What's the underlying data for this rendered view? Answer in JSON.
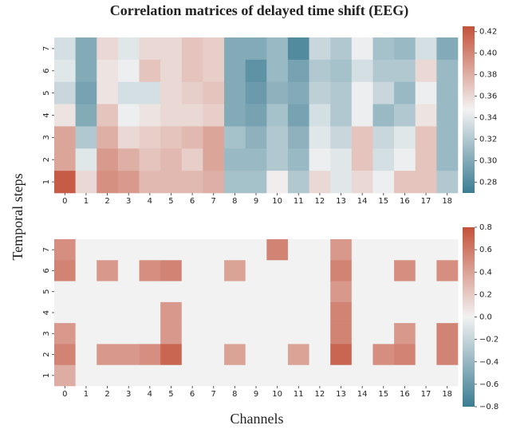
{
  "title": "Correlation matrices of delayed time shift (EEG)",
  "xlabel": "Channels",
  "ylabel": "Temporal steps",
  "chart_data": [
    {
      "type": "heatmap",
      "x": [
        0,
        1,
        2,
        3,
        4,
        5,
        6,
        7,
        8,
        9,
        10,
        11,
        12,
        13,
        14,
        15,
        16,
        17,
        18
      ],
      "y": [
        7,
        6,
        5,
        4,
        3,
        2,
        1
      ],
      "values": [
        [
          0.335,
          0.3,
          0.36,
          0.34,
          0.36,
          0.36,
          0.37,
          0.365,
          0.3,
          0.3,
          0.31,
          0.28,
          0.33,
          0.32,
          0.345,
          0.315,
          0.31,
          0.335,
          0.3
        ],
        [
          0.34,
          0.3,
          0.355,
          0.345,
          0.37,
          0.36,
          0.37,
          0.365,
          0.3,
          0.285,
          0.31,
          0.295,
          0.32,
          0.315,
          0.335,
          0.32,
          0.32,
          0.36,
          0.31
        ],
        [
          0.33,
          0.295,
          0.355,
          0.335,
          0.335,
          0.36,
          0.365,
          0.37,
          0.3,
          0.29,
          0.305,
          0.3,
          0.325,
          0.32,
          0.345,
          0.33,
          0.31,
          0.345,
          0.31
        ],
        [
          0.355,
          0.3,
          0.37,
          0.345,
          0.355,
          0.36,
          0.36,
          0.365,
          0.3,
          0.295,
          0.315,
          0.295,
          0.335,
          0.32,
          0.345,
          0.31,
          0.32,
          0.355,
          0.31
        ],
        [
          0.385,
          0.32,
          0.38,
          0.36,
          0.365,
          0.37,
          0.375,
          0.385,
          0.315,
          0.305,
          0.32,
          0.305,
          0.34,
          0.33,
          0.37,
          0.33,
          0.34,
          0.37,
          0.31
        ],
        [
          0.385,
          0.34,
          0.39,
          0.38,
          0.37,
          0.375,
          0.365,
          0.385,
          0.31,
          0.31,
          0.32,
          0.31,
          0.345,
          0.34,
          0.37,
          0.335,
          0.345,
          0.37,
          0.31
        ],
        [
          0.42,
          0.36,
          0.395,
          0.39,
          0.375,
          0.375,
          0.375,
          0.38,
          0.315,
          0.315,
          0.35,
          0.32,
          0.36,
          0.34,
          0.36,
          0.345,
          0.37,
          0.37,
          0.32
        ]
      ],
      "cmap": [
        "#3b7c92",
        "#f2f2f2",
        "#c3523a"
      ],
      "clim": [
        0.27,
        0.425
      ],
      "cticks": [
        0.28,
        {
          "value": 0.3,
          "label": "0.30"
        },
        0.32,
        0.34,
        0.36,
        0.38,
        {
          "value": 0.4,
          "label": "0.40"
        },
        0.42
      ]
    },
    {
      "type": "heatmap",
      "x": [
        0,
        1,
        2,
        3,
        4,
        5,
        6,
        7,
        8,
        9,
        10,
        11,
        12,
        13,
        14,
        15,
        16,
        17,
        18
      ],
      "y": [
        7,
        6,
        5,
        4,
        3,
        2,
        1
      ],
      "values": [
        [
          0.5,
          0,
          0,
          0,
          0,
          0,
          0,
          0,
          0,
          0,
          0.55,
          0,
          0,
          0.45,
          0,
          0,
          0,
          0,
          0
        ],
        [
          0.55,
          0,
          0.45,
          0,
          0.5,
          0.55,
          0,
          0,
          0.4,
          0,
          0,
          0,
          0,
          0.55,
          0,
          0,
          0.5,
          0,
          0.5
        ],
        [
          0,
          0,
          0,
          0,
          0,
          0,
          0,
          0,
          0,
          0,
          0,
          0,
          0,
          0.45,
          0,
          0,
          0,
          0,
          0
        ],
        [
          0,
          0,
          0,
          0,
          0,
          0.45,
          0,
          0,
          0,
          0,
          0,
          0,
          0,
          0.55,
          0,
          0,
          0,
          0,
          0
        ],
        [
          0.45,
          0,
          0,
          0,
          0,
          0.45,
          0,
          0,
          0,
          0,
          0,
          0,
          0,
          0.55,
          0,
          0,
          0.45,
          0,
          0.55
        ],
        [
          0.55,
          0,
          0.45,
          0.45,
          0.5,
          0.7,
          0,
          0,
          0.4,
          0,
          0,
          0.4,
          0,
          0.7,
          0,
          0.5,
          0.55,
          0,
          0.55
        ],
        [
          0.35,
          0,
          0,
          0,
          0,
          0,
          0,
          0,
          0,
          0,
          0,
          0,
          0,
          0,
          0,
          0,
          0,
          0,
          0
        ]
      ],
      "cmap": [
        "#3b7c92",
        "#f2f2f2",
        "#c3523a"
      ],
      "clim": [
        -0.8,
        0.8
      ],
      "cticks": [
        {
          "value": -0.8,
          "label": "−0.8"
        },
        {
          "value": -0.6,
          "label": "−0.6"
        },
        {
          "value": -0.4,
          "label": "−0.4"
        },
        {
          "value": -0.2,
          "label": "−0.2"
        },
        {
          "value": 0,
          "label": "0.0"
        },
        0.2,
        0.4,
        0.6,
        0.8
      ]
    }
  ]
}
